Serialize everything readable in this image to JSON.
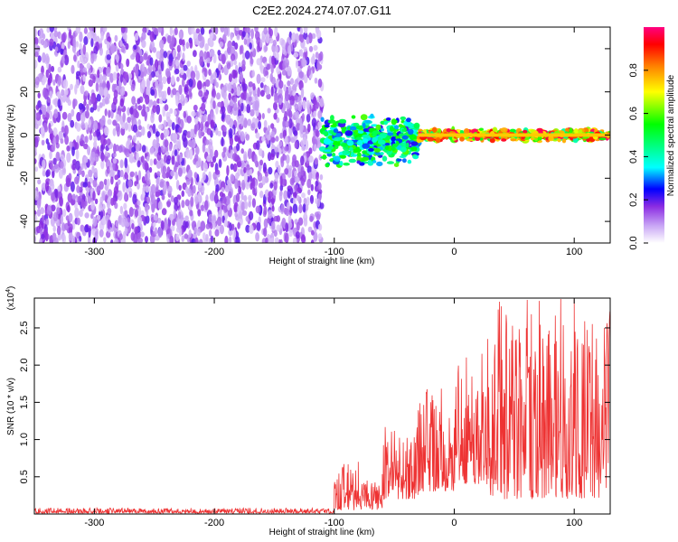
{
  "title": "C2E2.2024.274.07.07.G11",
  "chart_data": [
    {
      "type": "heatmap",
      "xlabel": "Height of straight line (km)",
      "ylabel": "Frequency (Hz)",
      "xlim": [
        -350,
        130
      ],
      "ylim": [
        -50,
        50
      ],
      "xticks": [
        -300,
        -200,
        -100,
        0,
        100
      ],
      "yticks": [
        -40,
        -20,
        0,
        20,
        40
      ],
      "colorbar": {
        "label": "Normalized spectral amplitude",
        "range": [
          0,
          1
        ],
        "ticks": [
          0.0,
          0.2,
          0.4,
          0.6,
          0.8
        ],
        "tick_labels": [
          "0.0",
          "0.2",
          "0.4",
          "0.6",
          "0.8"
        ],
        "colors": [
          "#ffffff",
          "#9933ff",
          "#0000ff",
          "#00ffff",
          "#00ff00",
          "#ffff00",
          "#ff8000",
          "#ff0000",
          "#ff0080"
        ]
      },
      "regions": [
        {
          "x": [
            -350,
            -110
          ],
          "y": [
            -50,
            50
          ],
          "amplitude": [
            0.05,
            0.2
          ],
          "description": "noise"
        },
        {
          "x": [
            -110,
            -30
          ],
          "y": [
            -15,
            10
          ],
          "amplitude": [
            0.2,
            0.6
          ]
        },
        {
          "x": [
            -30,
            130
          ],
          "y": [
            -3,
            3
          ],
          "amplitude": [
            0.4,
            1.0
          ]
        }
      ]
    },
    {
      "type": "line",
      "xlabel": "Height of straight line (km)",
      "ylabel": "SNR (10 * v/v)",
      "y_multiplier_label": "(x10",
      "y_multiplier_exp": "4",
      "y_multiplier_close": ")",
      "xlim": [
        -350,
        130
      ],
      "ylim": [
        0,
        2.9
      ],
      "xticks": [
        -300,
        -200,
        -100,
        0,
        100
      ],
      "yticks": [
        0.5,
        1.0,
        1.5,
        2.0,
        2.5
      ],
      "ytick_labels": [
        "0.5",
        "1.0",
        "1.5",
        "2.0",
        "2.5"
      ],
      "series": [
        {
          "color": "#ee3333",
          "segments": [
            {
              "x": [
                -350,
                -100
              ],
              "y": [
                0.01,
                0.08
              ]
            },
            {
              "x": [
                -100,
                -80
              ],
              "y": [
                0.05,
                0.7
              ]
            },
            {
              "x": [
                -80,
                -60
              ],
              "y": [
                0.05,
                0.45
              ]
            },
            {
              "x": [
                -60,
                -30
              ],
              "y": [
                0.2,
                1.2
              ]
            },
            {
              "x": [
                -30,
                0
              ],
              "y": [
                0.3,
                1.7
              ]
            },
            {
              "x": [
                0,
                30
              ],
              "y": [
                0.4,
                2.2
              ]
            },
            {
              "x": [
                30,
                130
              ],
              "y": [
                0.2,
                2.9
              ]
            }
          ],
          "peaks": [
            [
              100,
              2.88
            ],
            [
              125,
              2.5
            ],
            [
              28,
              2.35
            ],
            [
              55,
              2.3
            ],
            [
              85,
              2.32
            ],
            [
              -80,
              0.7
            ]
          ]
        }
      ]
    }
  ]
}
